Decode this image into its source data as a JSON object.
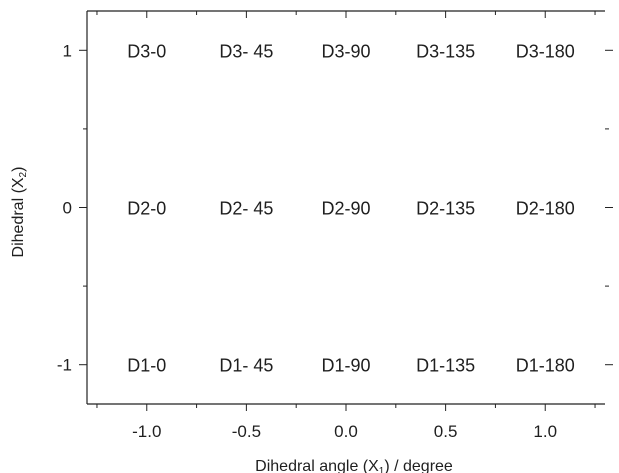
{
  "chart_data": {
    "type": "scatter",
    "title": "",
    "xlabel": "Dihedral angle (X1) / degree",
    "xlabel_main": "Dihedral angle (X",
    "xlabel_sub": "1",
    "xlabel_tail": ") / degree",
    "ylabel": "Dihedral (X2)",
    "ylabel_main": "Dihedral (X",
    "ylabel_sub": "2",
    "ylabel_tail": ")",
    "xlim": [
      -1.3,
      1.3
    ],
    "ylim": [
      -1.25,
      1.25
    ],
    "x_ticks": [
      -1.0,
      -0.5,
      0.0,
      0.5,
      1.0
    ],
    "x_tick_labels": [
      "-1.0",
      "-0.5",
      "0.0",
      "0.5",
      "1.0"
    ],
    "y_ticks": [
      -1,
      0,
      1
    ],
    "y_tick_labels": [
      "-1",
      "0",
      "1"
    ],
    "grid": false,
    "legend": "none",
    "points": [
      {
        "x": -1.0,
        "y": 1,
        "label": "D3-0"
      },
      {
        "x": -0.5,
        "y": 1,
        "label": "D3- 45"
      },
      {
        "x": 0.0,
        "y": 1,
        "label": "D3-90"
      },
      {
        "x": 0.5,
        "y": 1,
        "label": "D3-135"
      },
      {
        "x": 1.0,
        "y": 1,
        "label": "D3-180"
      },
      {
        "x": -1.0,
        "y": 0,
        "label": "D2-0"
      },
      {
        "x": -0.5,
        "y": 0,
        "label": "D2- 45"
      },
      {
        "x": 0.0,
        "y": 0,
        "label": "D2-90"
      },
      {
        "x": 0.5,
        "y": 0,
        "label": "D2-135"
      },
      {
        "x": 1.0,
        "y": 0,
        "label": "D2-180"
      },
      {
        "x": -1.0,
        "y": -1,
        "label": "D1-0"
      },
      {
        "x": -0.5,
        "y": -1,
        "label": "D1- 45"
      },
      {
        "x": 0.0,
        "y": -1,
        "label": "D1-90"
      },
      {
        "x": 0.5,
        "y": -1,
        "label": "D1-135"
      },
      {
        "x": 1.0,
        "y": -1,
        "label": "D1-180"
      }
    ],
    "colors": {
      "axis": "#222222",
      "text": "#1f1f1f"
    }
  }
}
